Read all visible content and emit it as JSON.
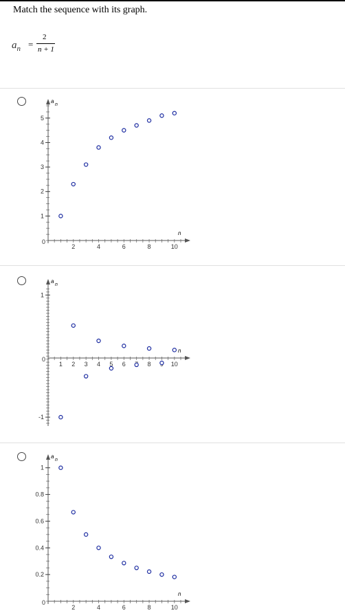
{
  "question": {
    "prompt": "Match the sequence with its graph.",
    "formula": {
      "lhs": "a",
      "lhs_sub": "n",
      "eq": "=",
      "numerator": "2",
      "denominator": "n + 1"
    }
  },
  "options": [
    {
      "id": "A",
      "chart_data": {
        "type": "scatter",
        "xlabel": "n",
        "ylabel": "a",
        "ylabel_sub": "n",
        "xlim": [
          0,
          10.5
        ],
        "ylim": [
          0,
          5.5
        ],
        "x_tick_labels": [
          "2",
          "4",
          "6",
          "8",
          "10"
        ],
        "y_tick_labels": [
          "1",
          "2",
          "3",
          "4",
          "5"
        ],
        "origin_label": "0",
        "x": [
          1,
          2,
          3,
          4,
          5,
          6,
          7,
          8,
          9,
          10
        ],
        "y": [
          1,
          2.3,
          3.1,
          3.8,
          4.2,
          4.5,
          4.7,
          4.9,
          5.1,
          5.2
        ]
      }
    },
    {
      "id": "B",
      "chart_data": {
        "type": "scatter",
        "xlabel": "n",
        "ylabel": "a",
        "ylabel_sub": "n",
        "xlim": [
          0,
          10.5
        ],
        "ylim": [
          -1.1,
          1.15
        ],
        "x_tick_labels": [
          "1",
          "2",
          "3",
          "4",
          "5",
          "6",
          "7",
          "8",
          "9",
          "10"
        ],
        "y_tick_labels": [
          "1",
          "-1"
        ],
        "origin_label": "0",
        "x": [
          1,
          2,
          3,
          4,
          5,
          6,
          7,
          8,
          9,
          10
        ],
        "y": [
          -1,
          0.5,
          -0.33,
          0.25,
          -0.2,
          0.167,
          -0.143,
          0.125,
          -0.111,
          0.1
        ]
      }
    },
    {
      "id": "C",
      "chart_data": {
        "type": "scatter",
        "xlabel": "n",
        "ylabel": "a",
        "ylabel_sub": "n",
        "xlim": [
          0,
          10.5
        ],
        "ylim": [
          0,
          1.05
        ],
        "x_tick_labels": [
          "2",
          "4",
          "6",
          "8",
          "10"
        ],
        "y_tick_labels": [
          "1",
          "0.8",
          "0.6",
          "0.4",
          "0.2"
        ],
        "origin_label": "0",
        "x": [
          1,
          2,
          3,
          4,
          5,
          6,
          7,
          8,
          9,
          10
        ],
        "y": [
          1,
          0.667,
          0.5,
          0.4,
          0.333,
          0.286,
          0.25,
          0.222,
          0.2,
          0.182
        ]
      }
    }
  ]
}
